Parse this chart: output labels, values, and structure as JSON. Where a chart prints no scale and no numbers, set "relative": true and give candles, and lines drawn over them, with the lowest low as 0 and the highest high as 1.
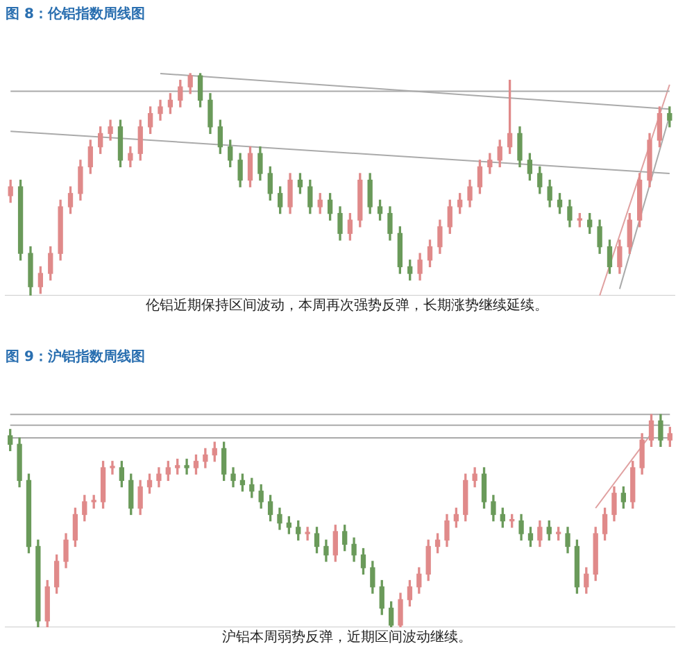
{
  "chart_data": [
    {
      "type": "candlestick",
      "title": "图 8：伦铝指数周线图",
      "annotations": [
        "伦铝近期保持区间波动，本周再次强势反弹，长期涨势继续延续。"
      ],
      "relative": true,
      "tick_labels": false,
      "categories": [
        null,
        null,
        null,
        null,
        null,
        null,
        null,
        null,
        null,
        null,
        null,
        null,
        null,
        null,
        null,
        null,
        null,
        null,
        null,
        null,
        null,
        null,
        null,
        null,
        null,
        null,
        null,
        null,
        null,
        null,
        null,
        null,
        null,
        null,
        null,
        null,
        null,
        null,
        null,
        null,
        null,
        null,
        null,
        null,
        null,
        null,
        null,
        null,
        null,
        null,
        null,
        null,
        null,
        null,
        null,
        null,
        null,
        null,
        null,
        null,
        null,
        null,
        null,
        null,
        null,
        null,
        null
      ],
      "ohlc": [
        [
          0.45,
          0.52,
          0.42,
          0.49
        ],
        [
          0.49,
          0.52,
          0.16,
          0.19
        ],
        [
          0.19,
          0.22,
          0,
          0.04
        ],
        [
          0.04,
          0.13,
          0.01,
          0.1
        ],
        [
          0.1,
          0.22,
          0.07,
          0.19
        ],
        [
          0.19,
          0.43,
          0.16,
          0.4
        ],
        [
          0.4,
          0.49,
          0.37,
          0.46
        ],
        [
          0.46,
          0.61,
          0.43,
          0.58
        ],
        [
          0.58,
          0.7,
          0.55,
          0.67
        ],
        [
          0.67,
          0.76,
          0.64,
          0.73
        ],
        [
          0.73,
          0.79,
          0.7,
          0.76
        ],
        [
          0.76,
          0.79,
          0.58,
          0.61
        ],
        [
          0.61,
          0.67,
          0.58,
          0.64
        ],
        [
          0.64,
          0.79,
          0.61,
          0.76
        ],
        [
          0.76,
          0.85,
          0.73,
          0.82
        ],
        [
          0.82,
          0.88,
          0.79,
          0.85
        ],
        [
          0.85,
          0.91,
          0.82,
          0.88
        ],
        [
          0.88,
          0.97,
          0.85,
          0.94
        ],
        [
          0.94,
          1,
          0.91,
          0.99
        ],
        [
          0.99,
          1,
          0.85,
          0.88
        ],
        [
          0.88,
          0.91,
          0.73,
          0.76
        ],
        [
          0.76,
          0.79,
          0.64,
          0.67
        ],
        [
          0.67,
          0.7,
          0.58,
          0.61
        ],
        [
          0.61,
          0.64,
          0.49,
          0.52
        ],
        [
          0.52,
          0.67,
          0.49,
          0.64
        ],
        [
          0.64,
          0.67,
          0.52,
          0.55
        ],
        [
          0.55,
          0.58,
          0.43,
          0.46
        ],
        [
          0.46,
          0.49,
          0.37,
          0.4
        ],
        [
          0.4,
          0.55,
          0.37,
          0.52
        ],
        [
          0.52,
          0.55,
          0.46,
          0.49
        ],
        [
          0.49,
          0.52,
          0.37,
          0.4
        ],
        [
          0.4,
          0.46,
          0.37,
          0.43
        ],
        [
          0.43,
          0.46,
          0.34,
          0.37
        ],
        [
          0.37,
          0.4,
          0.25,
          0.28
        ],
        [
          0.28,
          0.37,
          0.25,
          0.34
        ],
        [
          0.34,
          0.55,
          0.31,
          0.52
        ],
        [
          0.52,
          0.55,
          0.37,
          0.4
        ],
        [
          0.4,
          0.43,
          0.34,
          0.37
        ],
        [
          0.37,
          0.4,
          0.25,
          0.28
        ],
        [
          0.28,
          0.31,
          0.1,
          0.13
        ],
        [
          0.13,
          0.16,
          0.07,
          0.1
        ],
        [
          0.1,
          0.19,
          0.07,
          0.16
        ],
        [
          0.16,
          0.25,
          0.13,
          0.22
        ],
        [
          0.22,
          0.34,
          0.19,
          0.31
        ],
        [
          0.31,
          0.43,
          0.28,
          0.4
        ],
        [
          0.4,
          0.46,
          0.37,
          0.43
        ],
        [
          0.43,
          0.52,
          0.4,
          0.49
        ],
        [
          0.49,
          0.61,
          0.46,
          0.58
        ],
        [
          0.58,
          0.64,
          0.55,
          0.61
        ],
        [
          0.61,
          0.7,
          0.58,
          0.67
        ],
        [
          0.67,
          0.97,
          0.64,
          0.73
        ],
        [
          0.73,
          0.76,
          0.58,
          0.61
        ],
        [
          0.61,
          0.64,
          0.52,
          0.55
        ],
        [
          0.55,
          0.58,
          0.46,
          0.49
        ],
        [
          0.49,
          0.52,
          0.4,
          0.43
        ],
        [
          0.43,
          0.46,
          0.37,
          0.4
        ],
        [
          0.4,
          0.43,
          0.31,
          0.34
        ],
        [
          0.34,
          0.37,
          0.31,
          0.34
        ],
        [
          0.34,
          0.37,
          0.28,
          0.31
        ],
        [
          0.31,
          0.34,
          0.19,
          0.22
        ],
        [
          0.22,
          0.25,
          0.1,
          0.13
        ],
        [
          0.13,
          0.25,
          0.1,
          0.22
        ],
        [
          0.22,
          0.37,
          0.19,
          0.34
        ],
        [
          0.34,
          0.55,
          0.31,
          0.52
        ],
        [
          0.52,
          0.73,
          0.49,
          0.7
        ],
        [
          0.7,
          0.85,
          0.67,
          0.82
        ],
        [
          0.82,
          0.85,
          0.76,
          0.79
        ]
      ],
      "series": [
        {
          "type": "line",
          "color": "#aaaaaa",
          "values": [
            null,
            null,
            null,
            null,
            null,
            null,
            null,
            null,
            null,
            null,
            null,
            null,
            null,
            null,
            null,
            1,
            null,
            null,
            null,
            null,
            null,
            null,
            null,
            null,
            null,
            null,
            null,
            null,
            null,
            null,
            null,
            null,
            null,
            null,
            null,
            null,
            null,
            null,
            null,
            null,
            null,
            null,
            null,
            null,
            null,
            null,
            null,
            null,
            null,
            null,
            null,
            null,
            null,
            null,
            null,
            null,
            null,
            null,
            null,
            null,
            null,
            null,
            null,
            null,
            null,
            null,
            0.84
          ]
        },
        {
          "type": "line",
          "color": "#aaaaaa",
          "values": [
            0.92,
            null,
            null,
            null,
            null,
            null,
            null,
            null,
            null,
            null,
            null,
            null,
            null,
            null,
            null,
            null,
            null,
            null,
            null,
            null,
            null,
            null,
            null,
            null,
            null,
            null,
            null,
            null,
            null,
            null,
            null,
            null,
            null,
            null,
            null,
            null,
            null,
            null,
            null,
            null,
            null,
            null,
            null,
            null,
            null,
            null,
            null,
            null,
            null,
            null,
            null,
            null,
            null,
            null,
            null,
            null,
            null,
            null,
            null,
            null,
            null,
            null,
            null,
            null,
            null,
            null,
            0.92
          ]
        },
        {
          "type": "line",
          "color": "#aaaaaa",
          "values": [
            0.74,
            null,
            null,
            null,
            null,
            null,
            null,
            null,
            null,
            null,
            null,
            null,
            null,
            null,
            null,
            null,
            null,
            null,
            null,
            null,
            null,
            null,
            null,
            null,
            null,
            null,
            null,
            null,
            null,
            null,
            null,
            null,
            null,
            null,
            null,
            null,
            null,
            null,
            null,
            null,
            null,
            null,
            null,
            null,
            null,
            null,
            null,
            null,
            null,
            null,
            null,
            null,
            null,
            null,
            null,
            null,
            null,
            null,
            null,
            null,
            null,
            null,
            null,
            null,
            null,
            null,
            0.55
          ]
        },
        {
          "type": "line",
          "color": "#e0a0a0",
          "values": [
            null,
            null,
            null,
            null,
            null,
            null,
            null,
            null,
            null,
            null,
            null,
            null,
            null,
            null,
            null,
            null,
            null,
            null,
            null,
            null,
            null,
            null,
            null,
            null,
            null,
            null,
            null,
            null,
            null,
            null,
            null,
            null,
            null,
            null,
            null,
            null,
            null,
            null,
            null,
            null,
            null,
            null,
            null,
            null,
            null,
            null,
            null,
            null,
            null,
            null,
            null,
            null,
            null,
            null,
            null,
            null,
            null,
            null,
            null,
            0,
            null,
            null,
            null,
            null,
            null,
            null,
            0.95
          ]
        },
        {
          "type": "line",
          "color": "#aaaaaa",
          "values": [
            null,
            null,
            null,
            null,
            null,
            null,
            null,
            null,
            null,
            null,
            null,
            null,
            null,
            null,
            null,
            null,
            null,
            null,
            null,
            null,
            null,
            null,
            null,
            null,
            null,
            null,
            null,
            null,
            null,
            null,
            null,
            null,
            null,
            null,
            null,
            null,
            null,
            null,
            null,
            null,
            null,
            null,
            null,
            null,
            null,
            null,
            null,
            null,
            null,
            null,
            null,
            null,
            null,
            null,
            null,
            null,
            null,
            null,
            null,
            null,
            null,
            0.03,
            null,
            null,
            null,
            null,
            0.81
          ]
        }
      ]
    },
    {
      "type": "candlestick",
      "title": "图 9：沪铝指数周线图",
      "annotations": [
        "沪铝本周弱势反弹，近期区间波动继续。"
      ],
      "relative": true,
      "tick_labels": false,
      "categories": [
        null,
        null,
        null,
        null,
        null,
        null,
        null,
        null,
        null,
        null,
        null,
        null,
        null,
        null,
        null,
        null,
        null,
        null,
        null,
        null,
        null,
        null,
        null,
        null,
        null,
        null,
        null,
        null,
        null,
        null,
        null,
        null,
        null,
        null,
        null,
        null,
        null,
        null,
        null,
        null,
        null,
        null,
        null,
        null,
        null,
        null,
        null,
        null,
        null,
        null,
        null,
        null,
        null,
        null,
        null,
        null,
        null,
        null,
        null,
        null,
        null,
        null,
        null,
        null,
        null,
        null,
        null,
        null,
        null,
        null,
        null,
        null
      ],
      "ohlc": [
        [
          0.9,
          0.93,
          0.83,
          0.86
        ],
        [
          0.86,
          0.89,
          0.66,
          0.69
        ],
        [
          0.69,
          0.72,
          0.35,
          0.38
        ],
        [
          0.38,
          0.41,
          0,
          0.03
        ],
        [
          0.03,
          0.22,
          0,
          0.19
        ],
        [
          0.19,
          0.34,
          0.16,
          0.31
        ],
        [
          0.31,
          0.44,
          0.28,
          0.41
        ],
        [
          0.41,
          0.56,
          0.38,
          0.53
        ],
        [
          0.53,
          0.62,
          0.5,
          0.59
        ],
        [
          0.59,
          0.62,
          0.56,
          0.59
        ],
        [
          0.59,
          0.78,
          0.56,
          0.75
        ],
        [
          0.75,
          0.78,
          0.72,
          0.75
        ],
        [
          0.75,
          0.78,
          0.66,
          0.69
        ],
        [
          0.69,
          0.72,
          0.53,
          0.56
        ],
        [
          0.56,
          0.69,
          0.53,
          0.66
        ],
        [
          0.66,
          0.72,
          0.63,
          0.69
        ],
        [
          0.69,
          0.75,
          0.66,
          0.72
        ],
        [
          0.72,
          0.78,
          0.69,
          0.75
        ],
        [
          0.75,
          0.79,
          0.72,
          0.76
        ],
        [
          0.76,
          0.79,
          0.72,
          0.75
        ],
        [
          0.75,
          0.81,
          0.72,
          0.78
        ],
        [
          0.78,
          0.84,
          0.75,
          0.81
        ],
        [
          0.81,
          0.87,
          0.78,
          0.84
        ],
        [
          0.84,
          0.87,
          0.69,
          0.72
        ],
        [
          0.72,
          0.75,
          0.66,
          0.69
        ],
        [
          0.69,
          0.72,
          0.64,
          0.67
        ],
        [
          0.67,
          0.7,
          0.61,
          0.64
        ],
        [
          0.64,
          0.67,
          0.56,
          0.59
        ],
        [
          0.59,
          0.62,
          0.5,
          0.53
        ],
        [
          0.53,
          0.56,
          0.46,
          0.49
        ],
        [
          0.49,
          0.52,
          0.44,
          0.47
        ],
        [
          0.47,
          0.5,
          0.41,
          0.44
        ],
        [
          0.44,
          0.47,
          0.41,
          0.44
        ],
        [
          0.44,
          0.47,
          0.35,
          0.38
        ],
        [
          0.38,
          0.41,
          0.31,
          0.34
        ],
        [
          0.34,
          0.48,
          0.31,
          0.45
        ],
        [
          0.45,
          0.48,
          0.36,
          0.39
        ],
        [
          0.39,
          0.42,
          0.31,
          0.34
        ],
        [
          0.34,
          0.37,
          0.25,
          0.28
        ],
        [
          0.28,
          0.31,
          0.16,
          0.19
        ],
        [
          0.19,
          0.22,
          0.06,
          0.09
        ],
        [
          0.09,
          0.12,
          0,
          0.01
        ],
        [
          0.01,
          0.16,
          0,
          0.13
        ],
        [
          0.13,
          0.22,
          0.1,
          0.19
        ],
        [
          0.19,
          0.28,
          0.16,
          0.25
        ],
        [
          0.25,
          0.41,
          0.22,
          0.38
        ],
        [
          0.38,
          0.44,
          0.35,
          0.41
        ],
        [
          0.41,
          0.53,
          0.38,
          0.5
        ],
        [
          0.5,
          0.56,
          0.47,
          0.53
        ],
        [
          0.53,
          0.72,
          0.5,
          0.69
        ],
        [
          0.69,
          0.75,
          0.66,
          0.72
        ],
        [
          0.72,
          0.75,
          0.56,
          0.59
        ],
        [
          0.59,
          0.62,
          0.5,
          0.53
        ],
        [
          0.53,
          0.56,
          0.47,
          0.5
        ],
        [
          0.5,
          0.53,
          0.47,
          0.5
        ],
        [
          0.5,
          0.53,
          0.41,
          0.44
        ],
        [
          0.44,
          0.47,
          0.38,
          0.41
        ],
        [
          0.41,
          0.5,
          0.38,
          0.47
        ],
        [
          0.47,
          0.5,
          0.41,
          0.44
        ],
        [
          0.44,
          0.47,
          0.41,
          0.44
        ],
        [
          0.44,
          0.47,
          0.35,
          0.38
        ],
        [
          0.38,
          0.41,
          0.16,
          0.19
        ],
        [
          0.19,
          0.28,
          0.16,
          0.25
        ],
        [
          0.25,
          0.47,
          0.22,
          0.44
        ],
        [
          0.44,
          0.56,
          0.41,
          0.53
        ],
        [
          0.53,
          0.66,
          0.5,
          0.63
        ],
        [
          0.63,
          0.66,
          0.56,
          0.59
        ],
        [
          0.59,
          0.78,
          0.56,
          0.75
        ],
        [
          0.75,
          0.91,
          0.72,
          0.88
        ],
        [
          0.88,
          1,
          0.85,
          0.97
        ],
        [
          0.97,
          1,
          0.85,
          0.88
        ],
        [
          0.88,
          0.94,
          0.85,
          0.91
        ]
      ],
      "series": [
        {
          "type": "line",
          "color": "#aaaaaa",
          "values": [
            1,
            null,
            null,
            null,
            null,
            null,
            null,
            null,
            null,
            null,
            null,
            null,
            null,
            null,
            null,
            null,
            null,
            null,
            null,
            null,
            null,
            null,
            null,
            null,
            null,
            null,
            null,
            null,
            null,
            null,
            null,
            null,
            null,
            null,
            null,
            null,
            null,
            null,
            null,
            null,
            null,
            null,
            null,
            null,
            null,
            null,
            null,
            null,
            null,
            null,
            null,
            null,
            null,
            null,
            null,
            null,
            null,
            null,
            null,
            null,
            null,
            null,
            null,
            null,
            null,
            null,
            null,
            null,
            null,
            null,
            null,
            1
          ]
        },
        {
          "type": "line",
          "color": "#aaaaaa",
          "values": [
            0.95,
            null,
            null,
            null,
            null,
            null,
            null,
            null,
            null,
            null,
            null,
            null,
            null,
            null,
            null,
            null,
            null,
            null,
            null,
            null,
            null,
            null,
            null,
            null,
            null,
            null,
            null,
            null,
            null,
            null,
            null,
            null,
            null,
            null,
            null,
            null,
            null,
            null,
            null,
            null,
            null,
            null,
            null,
            null,
            null,
            null,
            null,
            null,
            null,
            null,
            null,
            null,
            null,
            null,
            null,
            null,
            null,
            null,
            null,
            null,
            null,
            null,
            null,
            null,
            null,
            null,
            null,
            null,
            null,
            null,
            null,
            0.95
          ]
        },
        {
          "type": "line",
          "color": "#aaaaaa",
          "values": [
            0.89,
            null,
            null,
            null,
            null,
            null,
            null,
            null,
            null,
            null,
            null,
            null,
            null,
            null,
            null,
            null,
            null,
            null,
            null,
            null,
            null,
            null,
            null,
            null,
            null,
            null,
            null,
            null,
            null,
            null,
            null,
            null,
            null,
            null,
            null,
            null,
            null,
            null,
            null,
            null,
            null,
            null,
            null,
            null,
            null,
            null,
            null,
            null,
            null,
            null,
            null,
            null,
            null,
            null,
            null,
            null,
            null,
            null,
            null,
            null,
            null,
            null,
            null,
            null,
            null,
            null,
            null,
            null,
            null,
            null,
            null,
            0.89
          ]
        },
        {
          "type": "line",
          "color": "#e0a0a0",
          "values": [
            null,
            null,
            null,
            null,
            null,
            null,
            null,
            null,
            null,
            null,
            null,
            null,
            null,
            null,
            null,
            null,
            null,
            null,
            null,
            null,
            null,
            null,
            null,
            null,
            null,
            null,
            null,
            null,
            null,
            null,
            null,
            null,
            null,
            null,
            null,
            null,
            null,
            null,
            null,
            null,
            null,
            null,
            null,
            null,
            null,
            null,
            null,
            null,
            null,
            null,
            null,
            null,
            null,
            null,
            null,
            null,
            null,
            null,
            null,
            null,
            null,
            null,
            null,
            0.56,
            null,
            null,
            null,
            null,
            null,
            0.91,
            null,
            null
          ]
        }
      ]
    }
  ]
}
